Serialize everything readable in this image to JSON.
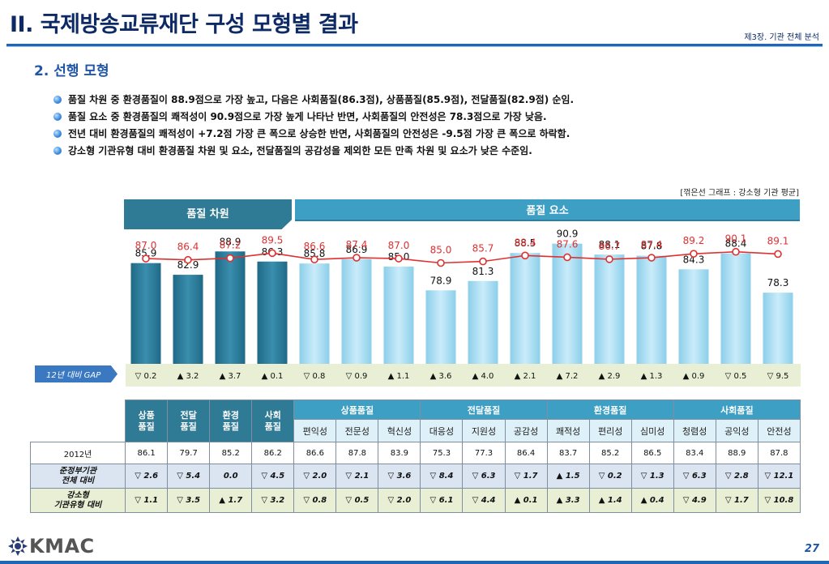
{
  "header": {
    "title": "II. 국제방송교류재단 구성 모형별 결과",
    "chapter": "제3장. 기관 전체 분석",
    "section": "2. 선행 모형"
  },
  "bullets": [
    "품질 차원 중 환경품질이 88.9점으로 가장 높고, 다음은 사회품질(86.3점), 상품품질(85.9점), 전달품질(82.9점) 순임.",
    "품질 요소 중 환경품질의 쾌적성이 90.9점으로 가장 높게 나타난 반면, 사회품질의 안전성은 78.3점으로 가장 낮음.",
    "전년 대비 환경품질의 쾌적성이 +7.2점 가장 큰 폭으로 상승한 반면, 사회품질의 안전성은 -9.5점 가장 큰 폭으로 하락함.",
    "강소형 기관유형 대비 환경품질 차원 및 요소, 전달품질의 공감성을 제외한 모든 만족 차원 및 요소가 낮은 수준임."
  ],
  "chart_caption": "[꺾은선 그래프 : 강소형 기관 평균]",
  "tabs": {
    "dimension": "품질 차원",
    "element": "품질 요소"
  },
  "gap_label": "12년 대비 GAP",
  "colors": {
    "dimension": "#2f7a95",
    "element": "#3d9fc4",
    "line": "#e03030",
    "gap_band": "#e8efd5"
  },
  "chart_data": {
    "type": "bar",
    "categories": [
      "상품품질",
      "전달품질",
      "환경품질",
      "사회품질",
      "편익성",
      "전문성",
      "혁신성",
      "대응성",
      "지원성",
      "공감성",
      "쾌적성",
      "편리성",
      "심미성",
      "청렴성",
      "공익성",
      "안전성"
    ],
    "series": [
      {
        "name": "",
        "kind": "bar",
        "values": [
          85.9,
          82.9,
          88.9,
          86.3,
          85.8,
          86.9,
          85.0,
          78.9,
          81.3,
          88.5,
          90.9,
          88.1,
          87.8,
          84.3,
          88.4,
          78.3
        ]
      },
      {
        "name": "강소형 기관 평균",
        "kind": "line",
        "values": [
          87.0,
          86.4,
          87.2,
          89.5,
          86.6,
          87.4,
          87.0,
          85.0,
          85.7,
          88.4,
          87.6,
          86.7,
          87.4,
          89.2,
          90.1,
          89.1
        ]
      }
    ],
    "gap": [
      {
        "dir": "down",
        "value": "0.2"
      },
      {
        "dir": "up",
        "value": "3.2"
      },
      {
        "dir": "up",
        "value": "3.7"
      },
      {
        "dir": "up",
        "value": "0.1"
      },
      {
        "dir": "down",
        "value": "0.8"
      },
      {
        "dir": "down",
        "value": "0.9"
      },
      {
        "dir": "up",
        "value": "1.1"
      },
      {
        "dir": "up",
        "value": "3.6"
      },
      {
        "dir": "up",
        "value": "4.0"
      },
      {
        "dir": "up",
        "value": "2.1"
      },
      {
        "dir": "up",
        "value": "7.2"
      },
      {
        "dir": "up",
        "value": "2.9"
      },
      {
        "dir": "up",
        "value": "1.3"
      },
      {
        "dir": "up",
        "value": "0.9"
      },
      {
        "dir": "down",
        "value": "0.5"
      },
      {
        "dir": "down",
        "value": "9.5"
      }
    ],
    "dimension_count": 4,
    "title": "",
    "xlabel": "",
    "ylabel": ""
  },
  "table": {
    "dimension_headers": [
      "상품\n품질",
      "전달\n품질",
      "환경\n품질",
      "사회\n품질"
    ],
    "groups": [
      "상품품질",
      "전달품질",
      "환경품질",
      "사회품질"
    ],
    "sub_headers": [
      "편익성",
      "전문성",
      "혁신성",
      "대응성",
      "지원성",
      "공감성",
      "쾌적성",
      "편리성",
      "심미성",
      "청렴성",
      "공익성",
      "안전성"
    ],
    "rows": [
      {
        "label": "2012년",
        "style": "plain",
        "cells": [
          "86.1",
          "79.7",
          "85.2",
          "86.2",
          "86.6",
          "87.8",
          "83.9",
          "75.3",
          "77.3",
          "86.4",
          "83.7",
          "85.2",
          "86.5",
          "83.4",
          "88.9",
          "87.8"
        ]
      },
      {
        "label": "준정부기관\n전체 대비",
        "style": "alt",
        "cells": [
          "▽ 2.6",
          "▽ 5.4",
          "0.0",
          "▽ 4.5",
          "▽ 2.0",
          "▽ 2.1",
          "▽ 3.6",
          "▽ 8.4",
          "▽ 6.3",
          "▽ 1.7",
          "▲ 1.5",
          "▽ 0.2",
          "▽ 1.3",
          "▽ 6.3",
          "▽ 2.8",
          "▽ 12.1"
        ]
      },
      {
        "label": "강소형\n기관유형 대비",
        "style": "green",
        "cells": [
          "▽ 1.1",
          "▽ 3.5",
          "▲ 1.7",
          "▽ 3.2",
          "▽ 0.8",
          "▽ 0.5",
          "▽ 2.0",
          "▽ 6.1",
          "▽ 4.4",
          "▲ 0.1",
          "▲ 3.3",
          "▲ 1.4",
          "▲ 0.4",
          "▽ 4.9",
          "▽ 1.7",
          "▽ 10.8"
        ]
      }
    ]
  },
  "footer": {
    "logo": "KMAC",
    "page": "27"
  }
}
